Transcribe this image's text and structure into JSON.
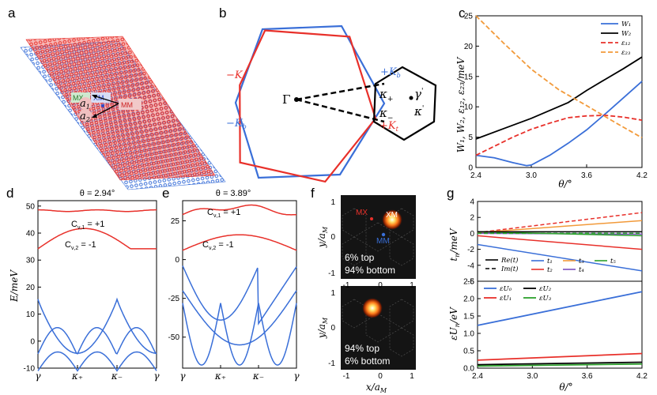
{
  "panels": {
    "a": {
      "label": "a",
      "mx": "MX",
      "xm": "XM",
      "mm": "MM",
      "a1": "a",
      "a1_sub": "1",
      "a2": "a",
      "a2_sub": "2"
    },
    "b": {
      "label": "b",
      "gamma": "Γ",
      "k_plus": "κ",
      "k_plus_sub": "+",
      "k_minus": "κ",
      "k_minus_sub": "−",
      "gamma_p": "γ",
      "gamma_p_sub": "'",
      "kappa_p": "κ",
      "kappa_p_sub": "'",
      "neg_kt": "−K",
      "neg_kt_sub": "t",
      "pos_kb": "+K",
      "pos_kb_sub": "b",
      "neg_kb": "−K",
      "neg_kb_sub": "b",
      "pos_kt": "+K",
      "pos_kt_sub": "t"
    },
    "c": {
      "label": "c",
      "ylabel": "W₁, W₂, ε₁₂, ε₂₃/meV",
      "xlabel": "θ/°"
    },
    "d": {
      "label": "d",
      "title": "θ = 2.94°",
      "ylabel": "E/meV",
      "chern1": "C",
      "chern1_sub": "ν,1",
      "chern1_val": " = +1",
      "chern2": "C",
      "chern2_sub": "ν,2",
      "chern2_val": " = -1",
      "xticks": [
        "γ",
        "κ₊",
        "κ₋",
        "γ"
      ]
    },
    "e": {
      "label": "e",
      "title": "θ = 3.89°",
      "chern1": "C",
      "chern1_sub": "ν,1",
      "chern1_val": " = +1",
      "chern2": "C",
      "chern2_sub": "ν,2",
      "chern2_val": " = -1",
      "xticks": [
        "γ",
        "κ₊",
        "κ₋",
        "γ"
      ]
    },
    "f": {
      "label": "f",
      "ylabel": "y/a",
      "ylabel_sub": "M",
      "xlabel": "x/a",
      "xlabel_sub": "M",
      "mx": "MX",
      "xm": "XM",
      "mm": "MM",
      "top_line1": "6% top",
      "top_line2": "94% bottom",
      "bot_line1": "94% top",
      "bot_line2": "6% bottom",
      "xticks": [
        "-1",
        "0",
        "1"
      ],
      "yticks": [
        "1",
        "0",
        "-1"
      ]
    },
    "g": {
      "label": "g",
      "ylabel_top": "t",
      "ylabel_top_sub": "n",
      "ylabel_top_unit": "/meV",
      "ylabel_bot": "εU",
      "ylabel_bot_sub": "n",
      "ylabel_bot_unit": "/eV",
      "xlabel": "θ/°"
    }
  },
  "colors": {
    "red": "#e8302a",
    "blue": "#3a6fd8",
    "black": "#000000",
    "orange": "#f29a3a",
    "green": "#2ca02c",
    "purple": "#7b4fbf"
  },
  "chart_data": [
    {
      "id": "c",
      "type": "line",
      "xlabel": "θ/°",
      "ylabel": "W1, W2, ε12, ε23/meV",
      "xlim": [
        2.4,
        4.2
      ],
      "ylim": [
        0,
        25
      ],
      "xticks": [
        2.4,
        3.0,
        3.6,
        4.2
      ],
      "yticks": [
        0,
        5,
        10,
        15,
        20,
        25
      ],
      "series": [
        {
          "name": "W₁",
          "color": "#3a6fd8",
          "dash": "",
          "x": [
            2.4,
            2.6,
            2.8,
            2.95,
            3.0,
            3.2,
            3.4,
            3.6,
            3.8,
            4.0,
            4.2
          ],
          "y": [
            2.0,
            1.6,
            0.8,
            0.3,
            0.4,
            2.0,
            4.0,
            6.2,
            8.8,
            11.5,
            14.2
          ]
        },
        {
          "name": "W₂",
          "color": "#000000",
          "dash": "",
          "x": [
            2.4,
            2.7,
            3.0,
            3.4,
            3.6,
            3.8,
            4.0,
            4.2
          ],
          "y": [
            4.7,
            6.4,
            8.1,
            10.7,
            12.7,
            14.5,
            16.3,
            18.2
          ]
        },
        {
          "name": "ε₁₂",
          "color": "#e8302a",
          "dash": "6,3",
          "x": [
            2.4,
            2.6,
            2.8,
            3.0,
            3.2,
            3.4,
            3.6,
            3.8,
            4.0,
            4.2
          ],
          "y": [
            2.0,
            3.5,
            5.0,
            6.3,
            7.3,
            8.2,
            8.5,
            8.6,
            8.3,
            7.8
          ]
        },
        {
          "name": "ε₂₃",
          "color": "#f29a3a",
          "dash": "6,3",
          "x": [
            2.4,
            2.7,
            3.0,
            3.3,
            3.6,
            3.9,
            4.2
          ],
          "y": [
            25.0,
            20.5,
            16.2,
            12.8,
            10.2,
            7.5,
            4.9
          ]
        }
      ]
    },
    {
      "id": "g_top",
      "type": "line",
      "ylabel": "tn/meV",
      "xlim": [
        2.4,
        4.2
      ],
      "ylim": [
        -6,
        4
      ],
      "yticks": [
        -6,
        -4,
        -2,
        0,
        2,
        4
      ],
      "legend": [
        "Re(t)",
        "Im(t)",
        "t₁",
        "t₂",
        "t₃",
        "t₄",
        "t₅"
      ],
      "series": [
        {
          "name": "Re t1",
          "color": "#3a6fd8",
          "dash": "",
          "y0": -1.4,
          "y1": -4.7
        },
        {
          "name": "Im t1",
          "color": "#3a6fd8",
          "dash": "5,3",
          "y0": 0.0,
          "y1": 0.0
        },
        {
          "name": "Re t2",
          "color": "#e8302a",
          "dash": "",
          "y0": -0.3,
          "y1": -2.0
        },
        {
          "name": "Im t2",
          "color": "#e8302a",
          "dash": "5,3",
          "y0": 0.1,
          "y1": 2.6
        },
        {
          "name": "Re t3",
          "color": "#f29a3a",
          "dash": "",
          "y0": 0.1,
          "y1": 1.6
        },
        {
          "name": "Re t4",
          "color": "#7b4fbf",
          "dash": "",
          "y0": 0.0,
          "y1": -0.1
        },
        {
          "name": "Re t5",
          "color": "#2ca02c",
          "dash": "",
          "y0": 0.2,
          "y1": -0.3
        },
        {
          "name": "Im t5",
          "color": "#2ca02c",
          "dash": "5,3",
          "y0": 0.0,
          "y1": 0.0
        },
        {
          "name": "Re(t) black",
          "color": "#000000",
          "dash": "",
          "y0": 0.2,
          "y1": 0.2
        }
      ]
    },
    {
      "id": "g_bot",
      "type": "line",
      "xlabel": "θ/°",
      "ylabel": "εUn/eV",
      "xlim": [
        2.4,
        4.2
      ],
      "ylim": [
        0,
        2.5
      ],
      "yticks": [
        0,
        0.5,
        1.0,
        1.5,
        2.0,
        2.5
      ],
      "xticks": [
        2.4,
        3.0,
        3.6,
        4.2
      ],
      "legend": [
        "εU₀",
        "εU₁",
        "εU₂",
        "εU₃"
      ],
      "series": [
        {
          "name": "εU₀",
          "color": "#3a6fd8",
          "y0": 1.23,
          "y1": 2.2
        },
        {
          "name": "εU₁",
          "color": "#e8302a",
          "y0": 0.23,
          "y1": 0.42
        },
        {
          "name": "εU₂",
          "color": "#000000",
          "y0": 0.1,
          "y1": 0.17
        },
        {
          "name": "εU₃",
          "color": "#2ca02c",
          "y0": 0.06,
          "y1": 0.12
        }
      ]
    },
    {
      "id": "d",
      "type": "line",
      "ylabel": "E/meV",
      "ylim": [
        -10,
        52
      ],
      "yticks": [
        -10,
        0,
        10,
        20,
        30,
        40,
        50
      ]
    },
    {
      "id": "e",
      "type": "line",
      "ylim": [
        -70,
        38
      ],
      "yticks": [
        -50,
        -25,
        0,
        25
      ]
    }
  ]
}
